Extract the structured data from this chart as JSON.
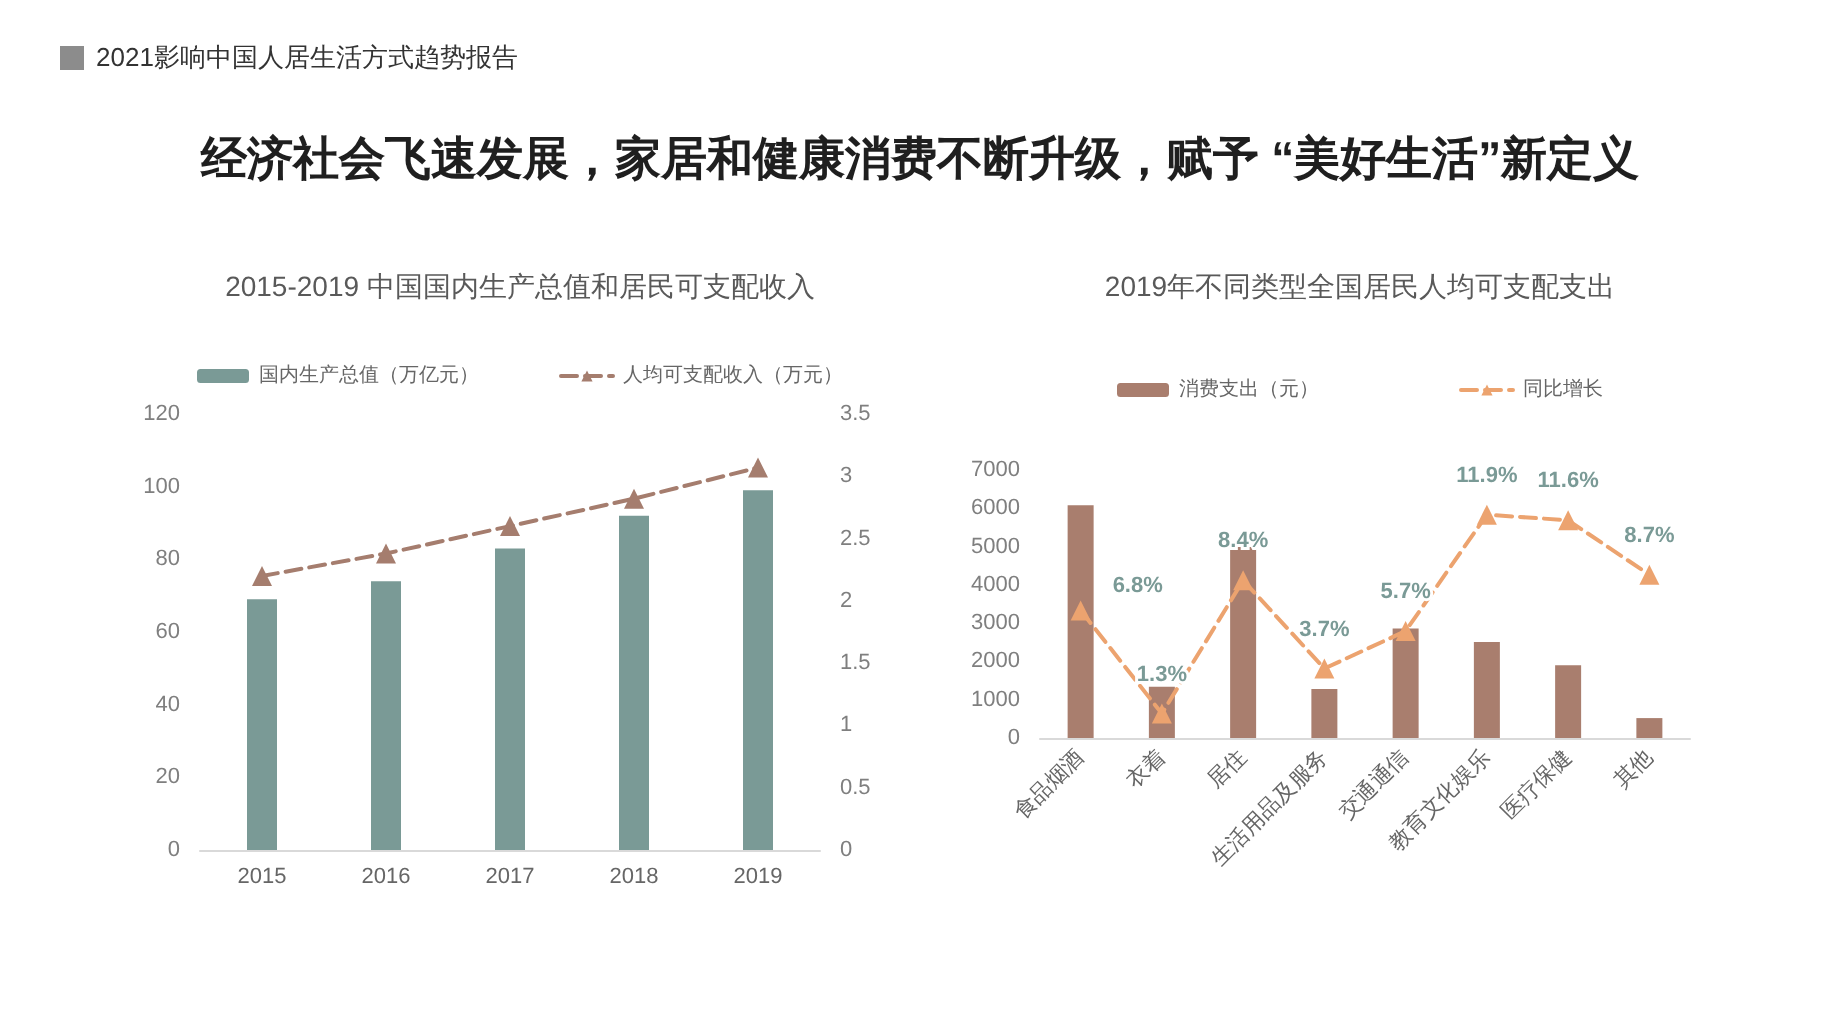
{
  "chart_data": [
    {
      "type": "bar",
      "title": "2015-2019 中国国内生产总值和居民可支配收入",
      "annotations": [
        "2021影响中国人居生活方式趋势报告",
        "经济社会飞速发展，家居和健康消费不断升级，赋予 “美好生活”新定义"
      ],
      "categories": [
        "2015",
        "2016",
        "2017",
        "2018",
        "2019"
      ],
      "series": [
        {
          "name": "国内生产总值（万亿元）",
          "color": "#7a9a96",
          "values": [
            69,
            74,
            83,
            92,
            99
          ]
        },
        {
          "name": "人均可支配收入（万元）",
          "type": "line",
          "axis": "y2",
          "color": "#a57d6e",
          "values": [
            2.2,
            2.38,
            2.6,
            2.82,
            3.07
          ]
        }
      ],
      "ylim": [
        0,
        120
      ],
      "yticks": [
        0,
        20,
        40,
        60,
        80,
        100,
        120
      ],
      "y2lim": [
        0,
        3.5
      ],
      "y2ticks": [
        0,
        0.5,
        1,
        1.5,
        2,
        2.5,
        3,
        3.5
      ],
      "grid": false,
      "legend": "top",
      "marker": "triangle",
      "line_style": "dashed"
    },
    {
      "type": "bar",
      "title": "2019年不同类型全国居民人均可支配支出",
      "categories": [
        "食品烟酒",
        "衣着",
        "居住",
        "生活用品及服务",
        "交通通信",
        "教育文化娱乐",
        "医疗保健",
        "其他"
      ],
      "series": [
        {
          "name": "消费支出（元）",
          "color": "#a97e6e",
          "values": [
            6080,
            1340,
            5060,
            1280,
            2860,
            2510,
            1900,
            520
          ]
        },
        {
          "name": "同比增长",
          "type": "line",
          "axis": "y2",
          "color": "#eca36f",
          "values": [
            6.8,
            1.3,
            8.4,
            3.7,
            5.7,
            11.9,
            11.6,
            8.7
          ],
          "value_labels": [
            "6.8%",
            "1.3%",
            "8.4%",
            "3.7%",
            "5.7%",
            "11.9%",
            "11.6%",
            "8.7%"
          ]
        }
      ],
      "ylim": [
        0,
        7000
      ],
      "yticks": [
        0,
        1000,
        2000,
        3000,
        4000,
        5000,
        6000,
        7000
      ],
      "grid": false,
      "legend": "top",
      "marker": "triangle",
      "line_style": "dashed"
    }
  ]
}
